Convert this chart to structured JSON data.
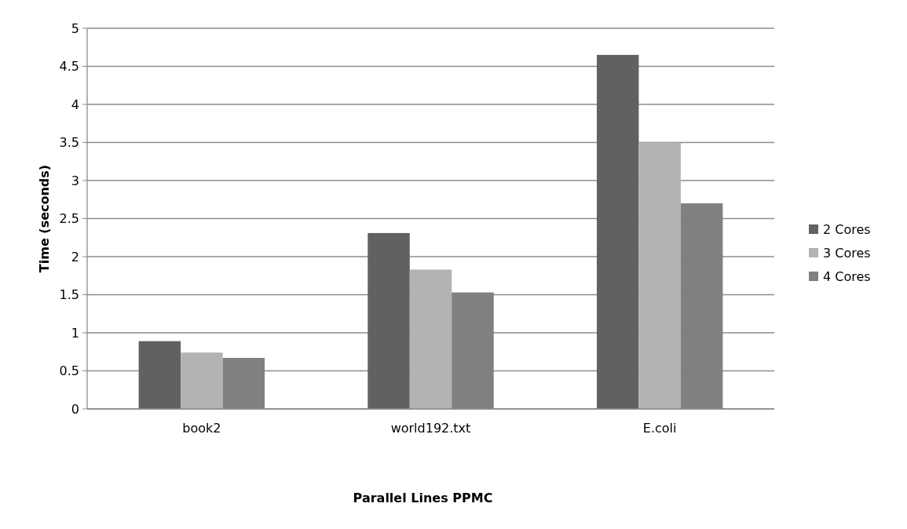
{
  "chart_data": {
    "type": "bar",
    "xlabel": "Parallel Lines PPMC",
    "ylabel": "Time (seconds)",
    "categories": [
      "book2",
      "world192.txt",
      "E.coli"
    ],
    "series": [
      {
        "name": "2 Cores",
        "color": "#616161",
        "values": [
          0.89,
          2.31,
          4.65
        ]
      },
      {
        "name": "3 Cores",
        "color": "#b3b3b3",
        "values": [
          0.74,
          1.83,
          3.5
        ]
      },
      {
        "name": "4 Cores",
        "color": "#808080",
        "values": [
          0.67,
          1.53,
          2.7
        ]
      }
    ],
    "ylim": [
      0,
      5
    ],
    "yticks": [
      0,
      0.5,
      1,
      1.5,
      2,
      2.5,
      3,
      3.5,
      4,
      4.5,
      5
    ],
    "grid": "y",
    "legend": "right"
  }
}
